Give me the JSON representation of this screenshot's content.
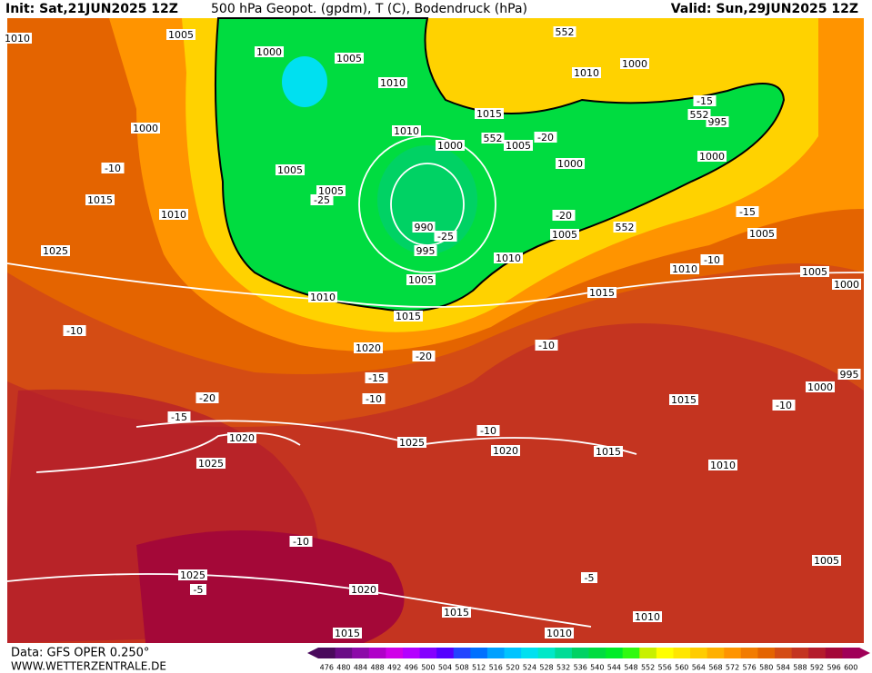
{
  "header": {
    "init": "Init: Sat,21JUN2025 12Z",
    "title": "500 hPa Geopot. (gpdm), T (C), Bodendruck (hPa)",
    "valid": "Valid: Sun,29JUN2025 12Z"
  },
  "footer": {
    "source": "Data: GFS OPER 0.250°",
    "website": "WWW.WETTERZENTRALE.DE"
  },
  "colorbar": {
    "values": [
      476,
      480,
      484,
      488,
      492,
      496,
      500,
      504,
      508,
      512,
      516,
      520,
      524,
      528,
      532,
      536,
      540,
      544,
      548,
      552,
      556,
      560,
      564,
      568,
      572,
      576,
      580,
      584,
      588,
      592,
      596,
      600
    ],
    "colors": [
      "#4a0a5c",
      "#6a0c86",
      "#8c0aa8",
      "#b000c8",
      "#d000e8",
      "#b400ff",
      "#8400ff",
      "#5400ff",
      "#2244ff",
      "#0070ff",
      "#00a0ff",
      "#00c4ff",
      "#00e0f0",
      "#00e8c8",
      "#00dc96",
      "#00d264",
      "#00dc40",
      "#00ec28",
      "#30fa10",
      "#c8f000",
      "#ffff00",
      "#ffe600",
      "#ffcc00",
      "#ffb000",
      "#ff9400",
      "#f27c00",
      "#e46400",
      "#d44c14",
      "#c43420",
      "#b41c2c",
      "#a40838",
      "#a00058"
    ]
  },
  "isobar_labels": [
    1010,
    1005,
    1000,
    1005,
    1010,
    552,
    1010,
    1000,
    1015,
    1000,
    -10,
    1005,
    1010,
    1000,
    552,
    1005,
    -20,
    1000,
    1000,
    995,
    552,
    -15,
    1015,
    1010,
    1005,
    -25,
    990,
    -25,
    995,
    1010,
    1005,
    -20,
    552,
    1005,
    -15,
    1025,
    1010,
    -10,
    1005,
    1000,
    1005,
    1010,
    1015,
    1015,
    -10,
    1020,
    -20,
    -10,
    -15,
    -10,
    995,
    1000,
    -20,
    1015,
    -10,
    -15,
    1020,
    1025,
    -10,
    1020,
    1015,
    1025,
    1010,
    -10,
    1025,
    -5,
    -5,
    1020,
    1015,
    1010,
    1005,
    1015,
    1010
  ]
}
